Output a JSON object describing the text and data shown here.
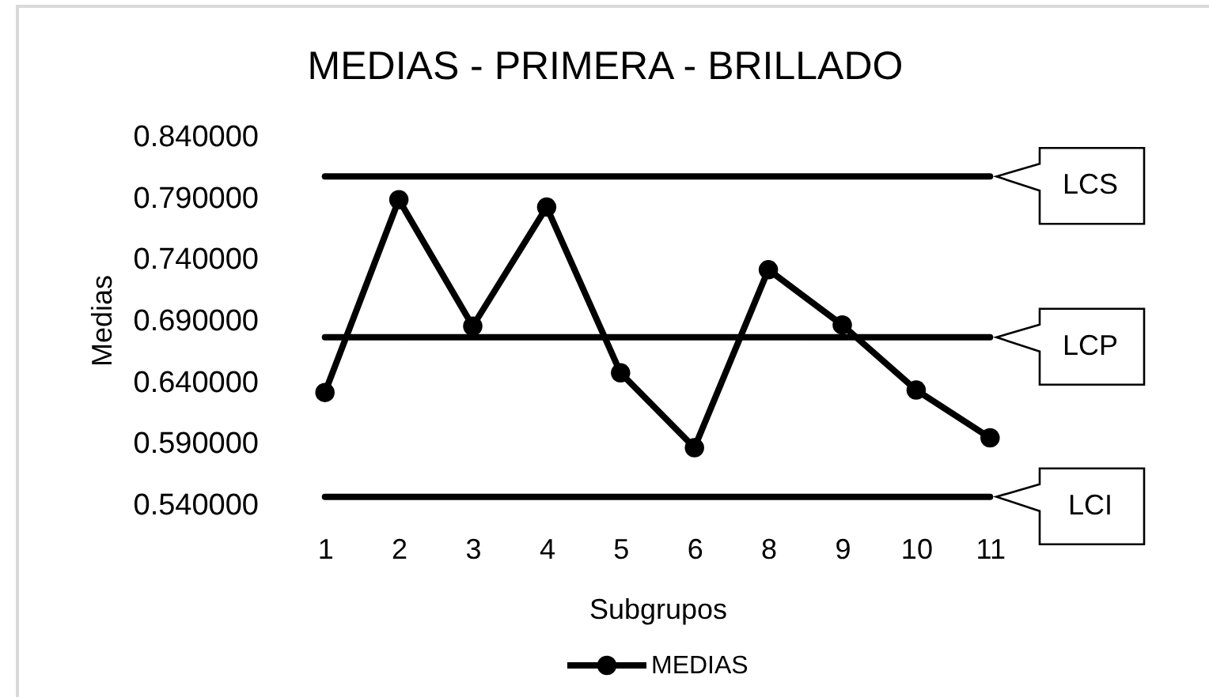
{
  "chart_data": {
    "type": "line",
    "title": "MEDIAS - PRIMERA - BRILLADO",
    "xlabel": "Subgrupos",
    "ylabel": "Medias",
    "categories": [
      "1",
      "2",
      "3",
      "4",
      "5",
      "6",
      "8",
      "9",
      "10",
      "11"
    ],
    "series": [
      {
        "name": "MEDIAS",
        "color": "#000000",
        "values": [
          0.631,
          0.788,
          0.685,
          0.782,
          0.647,
          0.586,
          0.731,
          0.686,
          0.633,
          0.594
        ]
      }
    ],
    "ylim": [
      0.54,
      0.84
    ],
    "yticks": [
      {
        "value": 0.54,
        "label": "0.540000"
      },
      {
        "value": 0.59,
        "label": "0.590000"
      },
      {
        "value": 0.64,
        "label": "0.640000"
      },
      {
        "value": 0.69,
        "label": "0.690000"
      },
      {
        "value": 0.74,
        "label": "0.740000"
      },
      {
        "value": 0.79,
        "label": "0.790000"
      },
      {
        "value": 0.84,
        "label": "0.840000"
      }
    ],
    "ref_lines": [
      {
        "axis": "y",
        "value": 0.807,
        "label": "LCS",
        "color": "#000000"
      },
      {
        "axis": "y",
        "value": 0.676,
        "label": "LCP",
        "color": "#000000"
      },
      {
        "axis": "y",
        "value": 0.546,
        "label": "LCI",
        "color": "#000000"
      }
    ],
    "legend": "bottom",
    "marker": "circle",
    "line_style": "solid"
  }
}
